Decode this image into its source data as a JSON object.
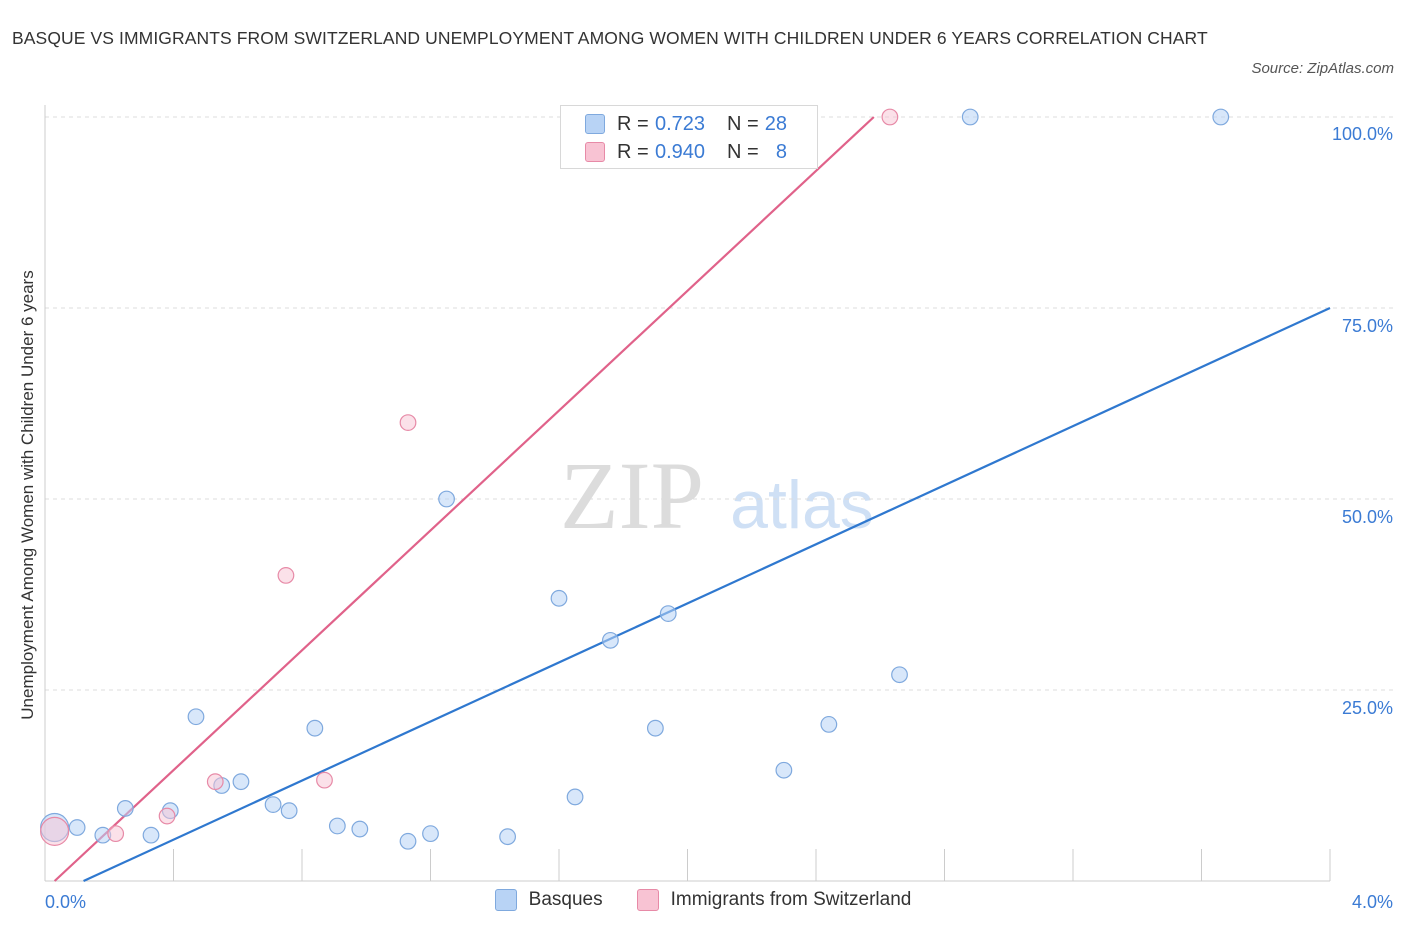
{
  "title": "BASQUE VS IMMIGRANTS FROM SWITZERLAND UNEMPLOYMENT AMONG WOMEN WITH CHILDREN UNDER 6 YEARS CORRELATION CHART",
  "source": "Source: ZipAtlas.com",
  "watermark": {
    "zip": "ZIP",
    "atlas": "atlas"
  },
  "colors": {
    "basque_fill": "#b8d3f5",
    "basque_stroke": "#7fa9de",
    "basque_line": "#2f78cf",
    "swiss_fill": "#f8c3d3",
    "swiss_stroke": "#e78aa7",
    "swiss_line": "#e0628a",
    "axis_label": "#3b7bd4",
    "grid": "#dcdcdc"
  },
  "stats_legend": [
    {
      "r_label": "R =",
      "r_value": "0.723",
      "n_label": "N =",
      "n_value": "28"
    },
    {
      "r_label": "R =",
      "r_value": "0.940",
      "n_label": "N =",
      "n_value": "8"
    }
  ],
  "chart_data": {
    "type": "scatter",
    "title": "BASQUE VS IMMIGRANTS FROM SWITZERLAND UNEMPLOYMENT AMONG WOMEN WITH CHILDREN UNDER 6 YEARS CORRELATION CHART",
    "xlabel": "",
    "ylabel": "Unemployment Among Women with Children Under 6 years",
    "xlim": [
      0.0,
      4.0
    ],
    "ylim": [
      0.0,
      100.0
    ],
    "x_tick_labels": [
      "0.0%",
      "4.0%"
    ],
    "y_tick_labels": [
      "100.0%",
      "75.0%",
      "50.0%",
      "25.0%"
    ],
    "y_ticks": [
      100,
      75,
      50,
      25
    ],
    "grid": true,
    "legend_position": "bottom-center",
    "series": [
      {
        "name": "Basques",
        "r": 0.723,
        "n": 28,
        "points": [
          [
            0.03,
            7.0
          ],
          [
            0.1,
            7.0
          ],
          [
            0.18,
            6.0
          ],
          [
            0.25,
            9.5
          ],
          [
            0.33,
            6.0
          ],
          [
            0.39,
            9.2
          ],
          [
            0.47,
            21.5
          ],
          [
            0.55,
            12.5
          ],
          [
            0.61,
            13.0
          ],
          [
            0.71,
            10.0
          ],
          [
            0.76,
            9.2
          ],
          [
            0.84,
            20.0
          ],
          [
            0.91,
            7.2
          ],
          [
            0.98,
            6.8
          ],
          [
            1.13,
            5.2
          ],
          [
            1.2,
            6.2
          ],
          [
            1.25,
            50.0
          ],
          [
            1.44,
            5.8
          ],
          [
            1.6,
            37.0
          ],
          [
            1.65,
            11.0
          ],
          [
            1.76,
            31.5
          ],
          [
            1.9,
            20.0
          ],
          [
            1.94,
            35.0
          ],
          [
            2.3,
            14.5
          ],
          [
            2.44,
            20.5
          ],
          [
            2.66,
            27.0
          ],
          [
            2.88,
            100.0
          ],
          [
            3.66,
            100.0
          ]
        ],
        "trend": [
          [
            0.12,
            0.0
          ],
          [
            4.0,
            75.0
          ]
        ]
      },
      {
        "name": "Immigrants from Switzerland",
        "r": 0.94,
        "n": 8,
        "points": [
          [
            0.03,
            6.5
          ],
          [
            0.22,
            6.2
          ],
          [
            0.38,
            8.5
          ],
          [
            0.53,
            13.0
          ],
          [
            0.75,
            40.0
          ],
          [
            0.87,
            13.2
          ],
          [
            1.13,
            60.0
          ],
          [
            2.63,
            100.0
          ]
        ],
        "trend": [
          [
            0.03,
            0.0
          ],
          [
            2.58,
            100.0
          ]
        ]
      }
    ]
  }
}
